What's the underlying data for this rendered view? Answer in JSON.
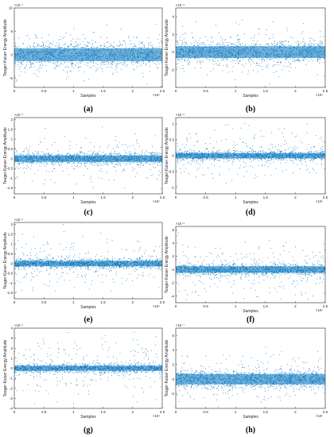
{
  "panels": [
    {
      "caption": "(a)",
      "xlabel": "Samples",
      "ylabel": "Teager-Kaiser Energy Amplitude",
      "x_exponent": "×10⁴",
      "y_exponent": "×10⁻⁷",
      "xticks": [
        "0",
        "0.5",
        "1",
        "1.5",
        "2",
        "2.5"
      ],
      "yticks": [
        "10",
        "5",
        "0",
        "-5"
      ]
    },
    {
      "caption": "(b)",
      "xlabel": "Samples",
      "ylabel": "Teager-Kaiser Energy Amplitude",
      "x_exponent": "×10⁴",
      "y_exponent": "×10⁻⁸",
      "xticks": [
        "0",
        "0.5",
        "1",
        "1.5",
        "2",
        "2.5"
      ],
      "yticks": [
        "4",
        "2",
        "0",
        "-2"
      ]
    },
    {
      "caption": "(c)",
      "xlabel": "Samples",
      "ylabel": "Teager-Kaiser Energy Amplitude",
      "x_exponent": "×10⁴",
      "y_exponent": "×10⁻⁶",
      "xticks": [
        "0",
        "0.5",
        "1",
        "1.5",
        "2",
        "2.5"
      ],
      "yticks": [
        "2",
        "1.5",
        "1",
        "0.5",
        "0",
        "-0.5",
        "-1",
        "-1.5"
      ]
    },
    {
      "caption": "(d)",
      "xlabel": "Samples",
      "ylabel": "Teager-Kaiser Energy Amplitude",
      "x_exponent": "×10⁴",
      "y_exponent": "×10⁻⁶",
      "xticks": [
        "0",
        "0.5",
        "1",
        "1.5",
        "2",
        "2.5"
      ],
      "yticks": [
        "1",
        "0.5",
        "0",
        "-0.5",
        "-1"
      ]
    },
    {
      "caption": "(e)",
      "xlabel": "Samples",
      "ylabel": "Teager-Kaiser Energy Amplitude",
      "x_exponent": "×10⁴",
      "y_exponent": "×10⁻⁶",
      "xticks": [
        "0",
        "0.5",
        "1",
        "1.5",
        "2",
        "2.5"
      ],
      "yticks": [
        "2",
        "1.5",
        "1",
        "0.5",
        "0",
        "-0.5",
        "-1",
        "-1.5"
      ]
    },
    {
      "caption": "(f)",
      "xlabel": "Samples",
      "ylabel": "Teager-Kaiser Energy Amplitude",
      "x_exponent": "×10⁴",
      "y_exponent": "×10⁻⁸",
      "xticks": [
        "0",
        "0.5",
        "1",
        "1.5",
        "2",
        "2.5"
      ],
      "yticks": [
        "6",
        "4",
        "2",
        "0",
        "-2",
        "-4"
      ]
    },
    {
      "caption": "(g)",
      "xlabel": "Samples",
      "ylabel": "Teager-Kaiser Energy Amplitude",
      "x_exponent": "×10⁴",
      "y_exponent": "×10⁻⁶",
      "xticks": [
        "0",
        "0.5",
        "1",
        "1.5",
        "2",
        "2.5"
      ],
      "yticks": [
        "4",
        "3",
        "2",
        "1",
        "0",
        "-1",
        "-2",
        "-3",
        "-4"
      ]
    },
    {
      "caption": "(h)",
      "xlabel": "Samples",
      "ylabel": "Teager-Kaiser Energy Amplitude",
      "x_exponent": "×10⁴",
      "y_exponent": "×10⁻⁷",
      "xticks": [
        "0",
        "0.5",
        "1",
        "1.5",
        "2",
        "2.5"
      ],
      "yticks": [
        "6",
        "4",
        "2",
        "0",
        "-2"
      ]
    }
  ],
  "chart_data": [
    {
      "type": "scatter",
      "panel": "(a)",
      "xlabel": "Samples",
      "ylabel": "Teager-Kaiser Energy Amplitude",
      "x_scale": "×10^4",
      "y_scale": "×10^-7",
      "xlim": [
        0,
        25000
      ],
      "ylim": [
        -7,
        10
      ],
      "center": 0,
      "core_halfwidth": 2.5,
      "outlier_spread": 6,
      "grid": false,
      "color": "#0072bd"
    },
    {
      "type": "scatter",
      "panel": "(b)",
      "xlabel": "Samples",
      "ylabel": "Teager-Kaiser Energy Amplitude",
      "x_scale": "×10^4",
      "y_scale": "×10^-8",
      "xlim": [
        0,
        25000
      ],
      "ylim": [
        -4,
        5
      ],
      "center": 0,
      "core_halfwidth": 1.2,
      "outlier_spread": 3,
      "grid": false,
      "color": "#0072bd"
    },
    {
      "type": "scatter",
      "panel": "(c)",
      "xlabel": "Samples",
      "ylabel": "Teager-Kaiser Energy Amplitude",
      "x_scale": "×10^4",
      "y_scale": "×10^-6",
      "xlim": [
        0,
        25000
      ],
      "ylim": [
        -1.8,
        2.1
      ],
      "center": 0,
      "core_halfwidth": 0.3,
      "outlier_spread": 1.4,
      "grid": false,
      "color": "#0072bd"
    },
    {
      "type": "scatter",
      "panel": "(d)",
      "xlabel": "Samples",
      "ylabel": "Teager-Kaiser Energy Amplitude",
      "x_scale": "×10^4",
      "y_scale": "×10^-6",
      "xlim": [
        0,
        25000
      ],
      "ylim": [
        -1.2,
        1.2
      ],
      "center": 0,
      "core_halfwidth": 0.15,
      "outlier_spread": 1.0,
      "grid": false,
      "color": "#0072bd"
    },
    {
      "type": "scatter",
      "panel": "(e)",
      "xlabel": "Samples",
      "ylabel": "Teager-Kaiser Energy Amplitude",
      "x_scale": "×10^4",
      "y_scale": "×10^-6",
      "xlim": [
        0,
        25000
      ],
      "ylim": [
        -1.8,
        2.1
      ],
      "center": 0,
      "core_halfwidth": 0.25,
      "outlier_spread": 1.4,
      "grid": false,
      "color": "#0072bd"
    },
    {
      "type": "scatter",
      "panel": "(f)",
      "xlabel": "Samples",
      "ylabel": "Teager-Kaiser Energy Amplitude",
      "x_scale": "×10^4",
      "y_scale": "×10^-8",
      "xlim": [
        0,
        25000
      ],
      "ylim": [
        -5,
        6.5
      ],
      "center": 0,
      "core_halfwidth": 0.9,
      "outlier_spread": 4.5,
      "grid": false,
      "color": "#0072bd"
    },
    {
      "type": "scatter",
      "panel": "(g)",
      "xlabel": "Samples",
      "ylabel": "Teager-Kaiser Energy Amplitude",
      "x_scale": "×10^4",
      "y_scale": "×10^-6",
      "xlim": [
        0,
        25000
      ],
      "ylim": [
        -4,
        4
      ],
      "center": 0,
      "core_halfwidth": 0.45,
      "outlier_spread": 3.2,
      "grid": false,
      "color": "#0072bd"
    },
    {
      "type": "scatter",
      "panel": "(h)",
      "xlabel": "Samples",
      "ylabel": "Teager-Kaiser Energy Amplitude",
      "x_scale": "×10^4",
      "y_scale": "×10^-7",
      "xlim": [
        0,
        25000
      ],
      "ylim": [
        -4,
        7
      ],
      "center": 0,
      "core_halfwidth": 1.3,
      "outlier_spread": 3.5,
      "grid": false,
      "color": "#0072bd"
    }
  ]
}
